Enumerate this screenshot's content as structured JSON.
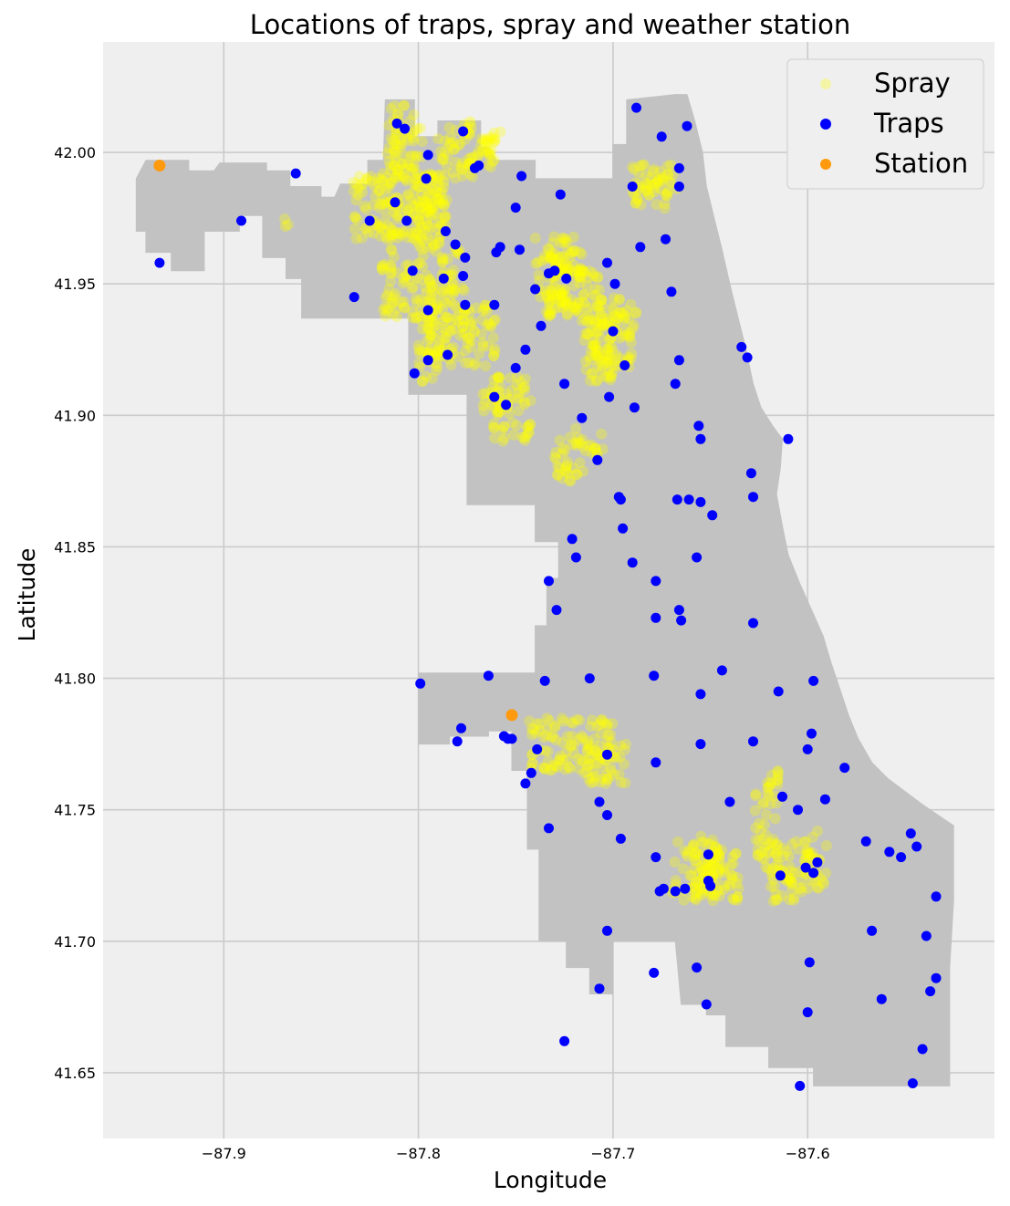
{
  "chart_data": {
    "type": "scatter",
    "title": "Locations of traps, spray and weather station",
    "xlabel": "Longitude",
    "ylabel": "Latitude",
    "xlim": [
      -87.962,
      -87.504
    ],
    "ylim": [
      41.625,
      42.042
    ],
    "xticks": [
      -87.9,
      -87.8,
      -87.7,
      -87.6
    ],
    "xtick_labels": [
      "−87.9",
      "−87.8",
      "−87.7",
      "−87.6"
    ],
    "yticks": [
      41.65,
      41.7,
      41.75,
      41.8,
      41.85,
      41.9,
      41.95,
      42.0
    ],
    "ytick_labels": [
      "41.65",
      "41.70",
      "41.75",
      "41.80",
      "41.85",
      "41.90",
      "41.95",
      "42.00"
    ],
    "grid": true,
    "legend_position": "top-right",
    "colors": {
      "background": "#efefef",
      "grid": "#cbcbcb",
      "map": "#c2c2c2",
      "spray": "#ffff00",
      "traps": "#0000ff",
      "station": "#ff9a0e"
    },
    "series": [
      {
        "name": "Spray",
        "style": "translucent dense clusters",
        "regions": [
          [
            -87.817,
            -87.81,
            41.96,
            42.018
          ],
          [
            -87.812,
            -87.798,
            41.99,
            42.018
          ],
          [
            -87.834,
            -87.785,
            41.967,
            41.992
          ],
          [
            -87.803,
            -87.786,
            41.96,
            41.992
          ],
          [
            -87.79,
            -87.772,
            41.99,
            42.012
          ],
          [
            -87.778,
            -87.762,
            41.998,
            42.008
          ],
          [
            -87.765,
            -87.757,
            41.992,
            42.008
          ],
          [
            -87.788,
            -87.778,
            41.945,
            41.965
          ],
          [
            -87.819,
            -87.792,
            41.935,
            41.958
          ],
          [
            -87.8,
            -87.79,
            41.912,
            41.945
          ],
          [
            -87.795,
            -87.775,
            41.918,
            41.95
          ],
          [
            -87.775,
            -87.76,
            41.918,
            41.942
          ],
          [
            -87.762,
            -87.742,
            41.89,
            41.915
          ],
          [
            -87.768,
            -87.754,
            41.9,
            41.91
          ],
          [
            -87.74,
            -87.72,
            41.935,
            41.968
          ],
          [
            -87.735,
            -87.715,
            41.94,
            41.963
          ],
          [
            -87.72,
            -87.705,
            41.935,
            41.955
          ],
          [
            -87.715,
            -87.69,
            41.917,
            41.945
          ],
          [
            -87.712,
            -87.7,
            41.91,
            41.935
          ],
          [
            -87.7,
            -87.688,
            41.93,
            41.942
          ],
          [
            -87.69,
            -87.67,
            41.978,
            41.997
          ],
          [
            -87.685,
            -87.667,
            41.985,
            41.992
          ],
          [
            -87.73,
            -87.715,
            41.875,
            41.892
          ],
          [
            -87.72,
            -87.705,
            41.885,
            41.895
          ],
          [
            -87.743,
            -87.727,
            41.765,
            41.785
          ],
          [
            -87.728,
            -87.7,
            41.765,
            41.785
          ],
          [
            -87.715,
            -87.693,
            41.76,
            41.775
          ],
          [
            -87.67,
            -87.645,
            41.715,
            41.74
          ],
          [
            -87.66,
            -87.635,
            41.715,
            41.735
          ],
          [
            -87.627,
            -87.615,
            41.73,
            41.765
          ],
          [
            -87.622,
            -87.6,
            41.715,
            41.738
          ],
          [
            -87.602,
            -87.59,
            41.72,
            41.742
          ],
          [
            -87.87,
            -87.866,
            41.971,
            41.975
          ]
        ]
      },
      {
        "name": "Traps",
        "points": [
          [
            -87.811,
            42.011
          ],
          [
            -87.807,
            42.009
          ],
          [
            -87.777,
            42.008
          ],
          [
            -87.688,
            42.017
          ],
          [
            -87.662,
            42.01
          ],
          [
            -87.675,
            42.006
          ],
          [
            -87.795,
            41.999
          ],
          [
            -87.771,
            41.994
          ],
          [
            -87.769,
            41.995
          ],
          [
            -87.666,
            41.994
          ],
          [
            -87.863,
            41.992
          ],
          [
            -87.796,
            41.99
          ],
          [
            -87.747,
            41.991
          ],
          [
            -87.69,
            41.987
          ],
          [
            -87.666,
            41.987
          ],
          [
            -87.727,
            41.984
          ],
          [
            -87.812,
            41.981
          ],
          [
            -87.75,
            41.979
          ],
          [
            -87.891,
            41.974
          ],
          [
            -87.825,
            41.974
          ],
          [
            -87.806,
            41.974
          ],
          [
            -87.786,
            41.97
          ],
          [
            -87.781,
            41.965
          ],
          [
            -87.673,
            41.967
          ],
          [
            -87.758,
            41.964
          ],
          [
            -87.748,
            41.963
          ],
          [
            -87.76,
            41.962
          ],
          [
            -87.686,
            41.964
          ],
          [
            -87.776,
            41.96
          ],
          [
            -87.703,
            41.958
          ],
          [
            -87.803,
            41.955
          ],
          [
            -87.733,
            41.954
          ],
          [
            -87.73,
            41.955
          ],
          [
            -87.724,
            41.952
          ],
          [
            -87.787,
            41.952
          ],
          [
            -87.777,
            41.953
          ],
          [
            -87.933,
            41.958
          ],
          [
            -87.699,
            41.95
          ],
          [
            -87.74,
            41.948
          ],
          [
            -87.67,
            41.947
          ],
          [
            -87.833,
            41.945
          ],
          [
            -87.776,
            41.942
          ],
          [
            -87.761,
            41.942
          ],
          [
            -87.795,
            41.94
          ],
          [
            -87.737,
            41.934
          ],
          [
            -87.7,
            41.932
          ],
          [
            -87.634,
            41.926
          ],
          [
            -87.631,
            41.922
          ],
          [
            -87.745,
            41.925
          ],
          [
            -87.785,
            41.923
          ],
          [
            -87.795,
            41.921
          ],
          [
            -87.666,
            41.921
          ],
          [
            -87.694,
            41.919
          ],
          [
            -87.75,
            41.918
          ],
          [
            -87.802,
            41.916
          ],
          [
            -87.668,
            41.912
          ],
          [
            -87.725,
            41.912
          ],
          [
            -87.761,
            41.907
          ],
          [
            -87.702,
            41.907
          ],
          [
            -87.755,
            41.904
          ],
          [
            -87.689,
            41.903
          ],
          [
            -87.716,
            41.899
          ],
          [
            -87.656,
            41.896
          ],
          [
            -87.655,
            41.891
          ],
          [
            -87.61,
            41.891
          ],
          [
            -87.708,
            41.883
          ],
          [
            -87.629,
            41.878
          ],
          [
            -87.628,
            41.869
          ],
          [
            -87.697,
            41.869
          ],
          [
            -87.696,
            41.868
          ],
          [
            -87.667,
            41.868
          ],
          [
            -87.661,
            41.868
          ],
          [
            -87.655,
            41.867
          ],
          [
            -87.649,
            41.862
          ],
          [
            -87.695,
            41.857
          ],
          [
            -87.721,
            41.853
          ],
          [
            -87.719,
            41.846
          ],
          [
            -87.657,
            41.846
          ],
          [
            -87.69,
            41.844
          ],
          [
            -87.733,
            41.837
          ],
          [
            -87.678,
            41.837
          ],
          [
            -87.666,
            41.826
          ],
          [
            -87.729,
            41.826
          ],
          [
            -87.678,
            41.823
          ],
          [
            -87.665,
            41.822
          ],
          [
            -87.628,
            41.821
          ],
          [
            -87.644,
            41.803
          ],
          [
            -87.764,
            41.801
          ],
          [
            -87.679,
            41.801
          ],
          [
            -87.712,
            41.8
          ],
          [
            -87.735,
            41.799
          ],
          [
            -87.597,
            41.799
          ],
          [
            -87.799,
            41.798
          ],
          [
            -87.615,
            41.795
          ],
          [
            -87.655,
            41.794
          ],
          [
            -87.778,
            41.781
          ],
          [
            -87.598,
            41.779
          ],
          [
            -87.756,
            41.778
          ],
          [
            -87.78,
            41.776
          ],
          [
            -87.754,
            41.777
          ],
          [
            -87.752,
            41.777
          ],
          [
            -87.628,
            41.776
          ],
          [
            -87.655,
            41.775
          ],
          [
            -87.6,
            41.773
          ],
          [
            -87.739,
            41.773
          ],
          [
            -87.703,
            41.771
          ],
          [
            -87.678,
            41.768
          ],
          [
            -87.581,
            41.766
          ],
          [
            -87.742,
            41.764
          ],
          [
            -87.745,
            41.76
          ],
          [
            -87.613,
            41.755
          ],
          [
            -87.707,
            41.753
          ],
          [
            -87.64,
            41.753
          ],
          [
            -87.591,
            41.754
          ],
          [
            -87.605,
            41.75
          ],
          [
            -87.703,
            41.748
          ],
          [
            -87.733,
            41.743
          ],
          [
            -87.547,
            41.741
          ],
          [
            -87.57,
            41.738
          ],
          [
            -87.696,
            41.739
          ],
          [
            -87.544,
            41.736
          ],
          [
            -87.558,
            41.734
          ],
          [
            -87.651,
            41.733
          ],
          [
            -87.552,
            41.732
          ],
          [
            -87.678,
            41.732
          ],
          [
            -87.595,
            41.73
          ],
          [
            -87.601,
            41.728
          ],
          [
            -87.597,
            41.726
          ],
          [
            -87.614,
            41.725
          ],
          [
            -87.651,
            41.723
          ],
          [
            -87.65,
            41.721
          ],
          [
            -87.674,
            41.72
          ],
          [
            -87.663,
            41.72
          ],
          [
            -87.668,
            41.719
          ],
          [
            -87.676,
            41.719
          ],
          [
            -87.534,
            41.717
          ],
          [
            -87.567,
            41.704
          ],
          [
            -87.703,
            41.704
          ],
          [
            -87.539,
            41.702
          ],
          [
            -87.599,
            41.692
          ],
          [
            -87.679,
            41.688
          ],
          [
            -87.657,
            41.69
          ],
          [
            -87.534,
            41.686
          ],
          [
            -87.707,
            41.682
          ],
          [
            -87.537,
            41.681
          ],
          [
            -87.562,
            41.678
          ],
          [
            -87.652,
            41.676
          ],
          [
            -87.6,
            41.673
          ],
          [
            -87.725,
            41.662
          ],
          [
            -87.541,
            41.659
          ],
          [
            -87.604,
            41.645
          ],
          [
            -87.546,
            41.646
          ]
        ]
      },
      {
        "name": "Station",
        "points": [
          [
            -87.933,
            41.995
          ],
          [
            -87.752,
            41.786
          ]
        ]
      }
    ]
  }
}
